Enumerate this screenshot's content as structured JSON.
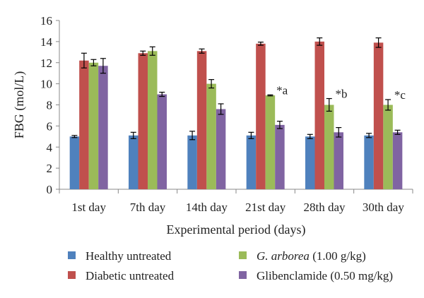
{
  "chart_data": {
    "type": "bar",
    "ylabel": "FBG (mol/L)",
    "xlabel": "Experimental period (days)",
    "ylim": [
      0,
      16
    ],
    "yticks": [
      0,
      2,
      4,
      6,
      8,
      10,
      12,
      14,
      16
    ],
    "grid": false,
    "legend_position": "bottom",
    "categories": [
      "1st day",
      "7th day",
      "14th day",
      "21st day",
      "28th day",
      "30th day"
    ],
    "series": [
      {
        "name": "Healthy untreated",
        "color": "#4f81bd",
        "values": [
          5.0,
          5.1,
          5.1,
          5.1,
          5.0,
          5.1
        ],
        "errors": [
          0.1,
          0.3,
          0.4,
          0.3,
          0.2,
          0.2
        ]
      },
      {
        "name": "Diabetic untreated",
        "color": "#c0504d",
        "values": [
          12.2,
          12.9,
          13.1,
          13.8,
          14.0,
          13.9
        ],
        "errors": [
          0.7,
          0.2,
          0.2,
          0.15,
          0.35,
          0.45
        ]
      },
      {
        "name_italic": "G. arborea",
        "name_rest": " (1.00 g/kg)",
        "color": "#9bbb59",
        "values": [
          12.0,
          13.1,
          10.0,
          8.9,
          8.0,
          8.0
        ],
        "errors": [
          0.3,
          0.4,
          0.4,
          0.05,
          0.6,
          0.5
        ]
      },
      {
        "name": "Glibenclamide (0.50 mg/kg)",
        "color": "#8064a2",
        "values": [
          11.7,
          9.0,
          7.6,
          6.1,
          5.4,
          5.4
        ],
        "errors": [
          0.7,
          0.2,
          0.5,
          0.35,
          0.45,
          0.2
        ]
      }
    ],
    "annotations": [
      {
        "category": "21st day",
        "text": "*a"
      },
      {
        "category": "28th day",
        "text": "*b"
      },
      {
        "category": "30th day",
        "text": "*c"
      }
    ]
  }
}
